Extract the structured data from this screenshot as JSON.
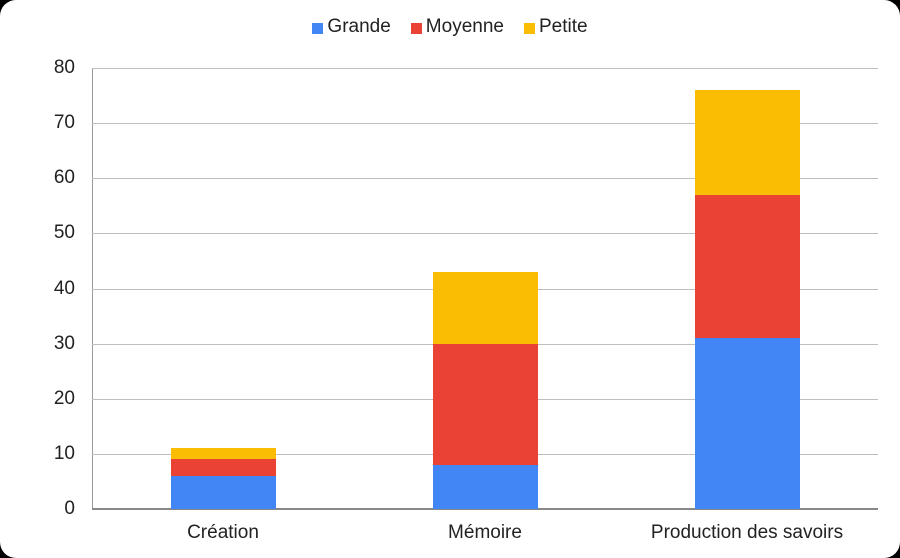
{
  "chart_data": {
    "type": "bar",
    "stacked": true,
    "title": "",
    "xlabel": "",
    "ylabel": "",
    "ylim": [
      0,
      80
    ],
    "yticks": [
      0,
      10,
      20,
      30,
      40,
      50,
      60,
      70,
      80
    ],
    "grid": true,
    "legend_position": "top",
    "categories": [
      "Création",
      "Mémoire",
      "Production des savoirs"
    ],
    "series": [
      {
        "name": "Grande",
        "color": "#4285f4",
        "values": [
          6,
          8,
          31
        ]
      },
      {
        "name": "Moyenne",
        "color": "#ea4335",
        "values": [
          3,
          22,
          26
        ]
      },
      {
        "name": "Petite",
        "color": "#fbbc04",
        "values": [
          2,
          13,
          19
        ]
      }
    ]
  },
  "legend": {
    "items": [
      {
        "label": "Grande",
        "color": "#4285f4"
      },
      {
        "label": "Moyenne",
        "color": "#ea4335"
      },
      {
        "label": "Petite",
        "color": "#fbbc04"
      }
    ]
  },
  "yaxis": {
    "labels": [
      "0",
      "10",
      "20",
      "30",
      "40",
      "50",
      "60",
      "70",
      "80"
    ]
  },
  "xaxis": {
    "labels": [
      "Création",
      "Mémoire",
      "Production des savoirs"
    ]
  }
}
